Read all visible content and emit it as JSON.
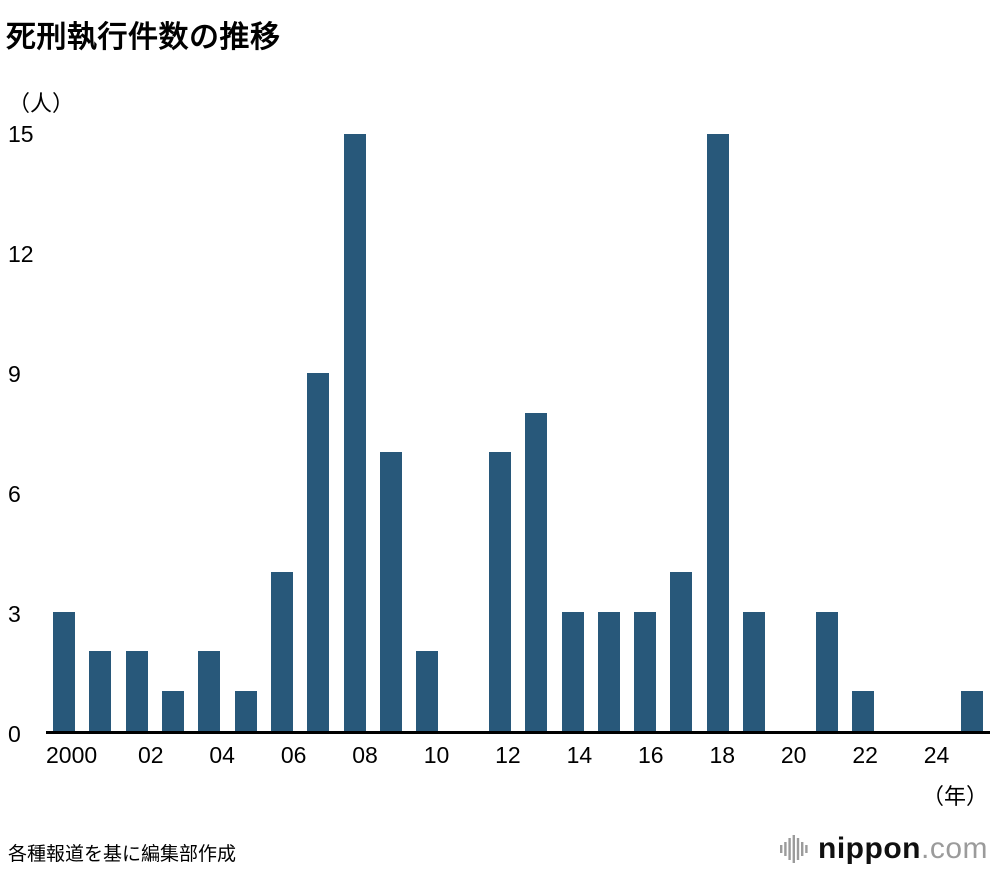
{
  "title": "死刑執行件数の推移",
  "y_axis_unit": "（人）",
  "x_axis_unit": "（年）",
  "source": "各種報道を基に編集部作成",
  "logo": {
    "name": "nippon",
    "tld": ".com"
  },
  "colors": {
    "bar": "#28587a",
    "axis": "#000000",
    "logo_gray": "#9b9b9b"
  },
  "chart_data": {
    "type": "bar",
    "title": "死刑執行件数の推移",
    "ylabel": "（人）",
    "xlabel": "（年）",
    "x": [
      2000,
      2001,
      2002,
      2003,
      2004,
      2005,
      2006,
      2007,
      2008,
      2009,
      2010,
      2011,
      2012,
      2013,
      2014,
      2015,
      2016,
      2017,
      2018,
      2019,
      2020,
      2021,
      2022,
      2023,
      2024,
      2025
    ],
    "values": [
      3,
      2,
      2,
      1,
      2,
      1,
      4,
      9,
      15,
      7,
      2,
      0,
      7,
      8,
      3,
      3,
      3,
      4,
      15,
      3,
      0,
      3,
      1,
      0,
      0,
      1
    ],
    "x_tick_labels": [
      "2000",
      "02",
      "04",
      "06",
      "08",
      "10",
      "12",
      "14",
      "16",
      "18",
      "20",
      "22",
      "24"
    ],
    "y_ticks": [
      0,
      3,
      6,
      9,
      12,
      15
    ],
    "ylim": [
      0,
      15
    ],
    "grid": false,
    "legend": "none"
  }
}
